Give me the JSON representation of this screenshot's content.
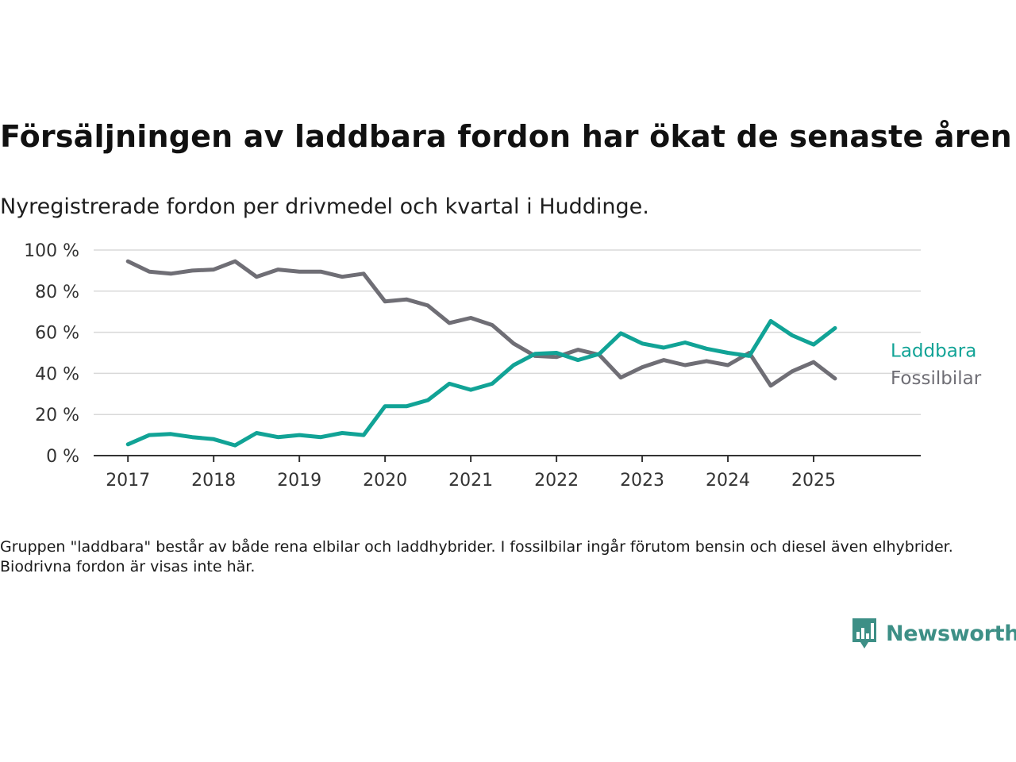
{
  "header": {
    "title": "Försäljningen av laddbara fordon har ökat de senaste åren",
    "subtitle": "Nyregistrerade fordon per drivmedel och kvartal i Huddinge."
  },
  "footer": {
    "note": "Gruppen \"laddbara\" består av både rena elbilar och laddhybrider. I fossilbilar ingår förutom bensin och diesel även elhybrider. Biodrivna fordon är visas inte här.",
    "brand": "Newsworthy",
    "brand_icon": "bar-chart-speech-bubble-icon"
  },
  "colors": {
    "laddbara": "#11a396",
    "fossilbilar": "#6f6e75",
    "grid": "#d9d9d9",
    "axis": "#333333",
    "brand": "#3d8f86"
  },
  "chart_data": {
    "type": "line",
    "x_tick_labels": [
      "2017",
      "2018",
      "2019",
      "2020",
      "2021",
      "2022",
      "2023",
      "2024",
      "2025"
    ],
    "y_tick_labels": [
      "0 %",
      "20 %",
      "40 %",
      "60 %",
      "80 %",
      "100 %"
    ],
    "y_ticks": [
      0,
      20,
      40,
      60,
      80,
      100
    ],
    "ylim": [
      0,
      100
    ],
    "xlim": [
      2016.6,
      2026.25
    ],
    "grid": "horizontal",
    "legend": "direct labels at line ends, right",
    "x": [
      2017.0,
      2017.25,
      2017.5,
      2017.75,
      2018.0,
      2018.25,
      2018.5,
      2018.75,
      2019.0,
      2019.25,
      2019.5,
      2019.75,
      2020.0,
      2020.25,
      2020.5,
      2020.75,
      2021.0,
      2021.25,
      2021.5,
      2021.75,
      2022.0,
      2022.25,
      2022.5,
      2022.75,
      2023.0,
      2023.25,
      2023.5,
      2023.75,
      2024.0,
      2024.25,
      2024.5,
      2024.75,
      2025.0,
      2025.25
    ],
    "series": [
      {
        "name": "Laddbara",
        "color": "#11a396",
        "values": [
          5.5,
          10,
          10.5,
          9,
          8,
          5,
          11,
          9,
          10,
          9,
          11,
          10,
          24,
          24,
          27,
          35,
          32,
          35,
          44,
          49.5,
          50,
          46.5,
          49.5,
          59.5,
          54.5,
          52.5,
          55,
          52,
          50,
          48.5,
          65.5,
          58.5,
          54,
          62
        ]
      },
      {
        "name": "Fossilbilar",
        "color": "#6f6e75",
        "values": [
          94.5,
          89.5,
          88.5,
          90,
          90.5,
          94.5,
          87,
          90.5,
          89.5,
          89.5,
          87,
          88.5,
          75,
          76,
          73,
          64.5,
          67,
          63.5,
          54.5,
          48.5,
          48,
          51.5,
          49,
          38,
          43,
          46.5,
          44,
          46,
          44,
          50,
          34,
          41,
          45.5,
          37.5
        ]
      }
    ]
  }
}
